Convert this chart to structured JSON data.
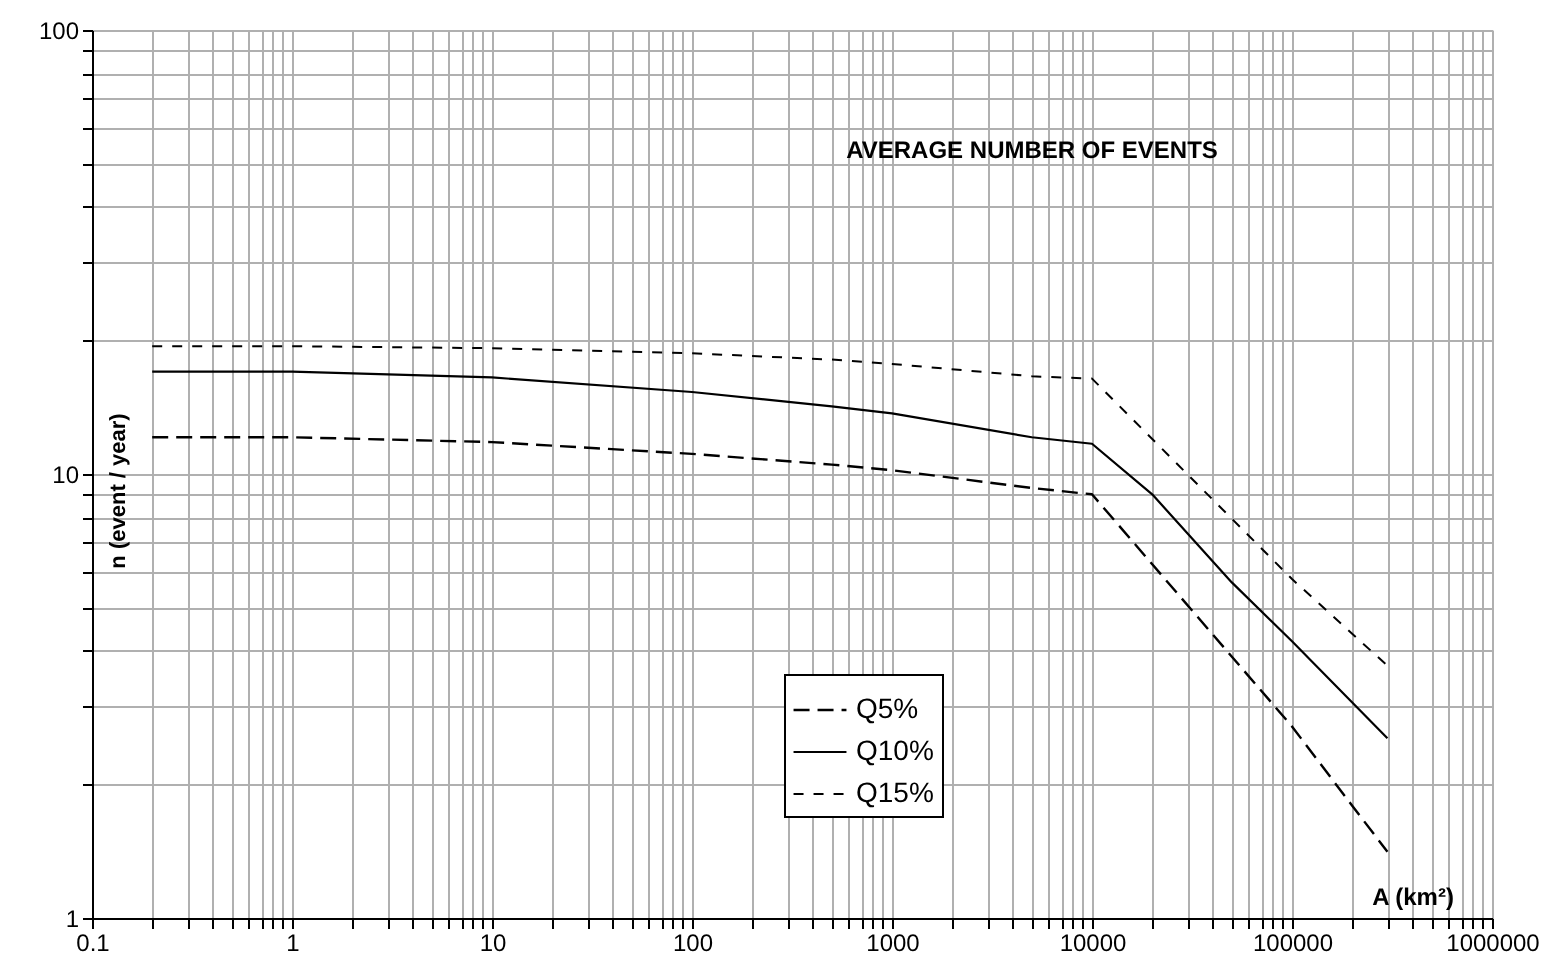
{
  "chart_data": {
    "type": "line",
    "title": "AVERAGE NUMBER OF EVENTS",
    "xlabel": "A (km²)",
    "ylabel": "n (event / year)",
    "log": "xy",
    "grid": true,
    "legend": "bottom",
    "marker": "none",
    "xlim": [
      0.1,
      1000000
    ],
    "ylim": [
      1,
      100
    ],
    "xticks": [
      0.1,
      {
        "value": 0.2,
        "label": null
      },
      {
        "value": 0.3,
        "label": null
      },
      {
        "value": 0.4,
        "label": null
      },
      {
        "value": 0.5,
        "label": null
      },
      {
        "value": 0.6,
        "label": null
      },
      {
        "value": 0.7,
        "label": null
      },
      {
        "value": 0.8,
        "label": null
      },
      {
        "value": 0.9,
        "label": null
      },
      1,
      {
        "value": 2,
        "label": null
      },
      {
        "value": 3,
        "label": null
      },
      {
        "value": 4,
        "label": null
      },
      {
        "value": 5,
        "label": null
      },
      {
        "value": 6,
        "label": null
      },
      {
        "value": 7,
        "label": null
      },
      {
        "value": 8,
        "label": null
      },
      {
        "value": 9,
        "label": null
      },
      10,
      {
        "value": 20,
        "label": null
      },
      {
        "value": 30,
        "label": null
      },
      {
        "value": 40,
        "label": null
      },
      {
        "value": 50,
        "label": null
      },
      {
        "value": 60,
        "label": null
      },
      {
        "value": 70,
        "label": null
      },
      {
        "value": 80,
        "label": null
      },
      {
        "value": 90,
        "label": null
      },
      100,
      {
        "value": 200,
        "label": null
      },
      {
        "value": 300,
        "label": null
      },
      {
        "value": 400,
        "label": null
      },
      {
        "value": 500,
        "label": null
      },
      {
        "value": 600,
        "label": null
      },
      {
        "value": 700,
        "label": null
      },
      {
        "value": 800,
        "label": null
      },
      {
        "value": 900,
        "label": null
      },
      1000,
      {
        "value": 2000,
        "label": null
      },
      {
        "value": 3000,
        "label": null
      },
      {
        "value": 4000,
        "label": null
      },
      {
        "value": 5000,
        "label": null
      },
      {
        "value": 6000,
        "label": null
      },
      {
        "value": 7000,
        "label": null
      },
      {
        "value": 8000,
        "label": null
      },
      {
        "value": 9000,
        "label": null
      },
      10000,
      {
        "value": 20000,
        "label": null
      },
      {
        "value": 30000,
        "label": null
      },
      {
        "value": 40000,
        "label": null
      },
      {
        "value": 50000,
        "label": null
      },
      {
        "value": 60000,
        "label": null
      },
      {
        "value": 70000,
        "label": null
      },
      {
        "value": 80000,
        "label": null
      },
      {
        "value": 90000,
        "label": null
      },
      100000,
      {
        "value": 200000,
        "label": null
      },
      {
        "value": 300000,
        "label": null
      },
      {
        "value": 400000,
        "label": null
      },
      {
        "value": 500000,
        "label": null
      },
      {
        "value": 600000,
        "label": null
      },
      {
        "value": 700000,
        "label": null
      },
      {
        "value": 800000,
        "label": null
      },
      {
        "value": 900000,
        "label": null
      },
      1000000
    ],
    "yticks": [
      1,
      {
        "value": 2,
        "label": null
      },
      {
        "value": 3,
        "label": null
      },
      {
        "value": 4,
        "label": null
      },
      {
        "value": 5,
        "label": null
      },
      {
        "value": 6,
        "label": null
      },
      {
        "value": 7,
        "label": null
      },
      {
        "value": 8,
        "label": null
      },
      {
        "value": 9,
        "label": null
      },
      10,
      {
        "value": 20,
        "label": null
      },
      {
        "value": 30,
        "label": null
      },
      {
        "value": 40,
        "label": null
      },
      {
        "value": 50,
        "label": null
      },
      {
        "value": 60,
        "label": null
      },
      {
        "value": 70,
        "label": null
      },
      {
        "value": 80,
        "label": null
      },
      {
        "value": 90,
        "label": null
      },
      100
    ],
    "series": [
      {
        "name": "Q5%",
        "color": "#000000",
        "line_style": "dashed",
        "x": [
          0.2,
          1,
          10,
          100,
          500,
          1000,
          5000,
          10000,
          100000,
          200000,
          300000
        ],
        "values": [
          12.1,
          12.1,
          11.8,
          11.1,
          10.5,
          10.2,
          9.3,
          9.0,
          2.7,
          1.79,
          1.41
        ]
      },
      {
        "name": "Q10%",
        "color": "#000000",
        "line_style": "solid",
        "x": [
          0.2,
          1,
          10,
          100,
          500,
          1000,
          5000,
          10000,
          20000,
          50000,
          100000,
          300000
        ],
        "values": [
          17.0,
          17.0,
          16.5,
          15.3,
          14.2,
          13.7,
          12.1,
          11.7,
          9.0,
          5.7,
          4.2,
          2.54
        ]
      },
      {
        "name": "Q15%",
        "color": "#000000",
        "line_style": "dotted",
        "x": [
          0.2,
          1,
          10,
          100,
          500,
          1000,
          5000,
          10000,
          100000,
          300000
        ],
        "values": [
          19.4,
          19.4,
          19.2,
          18.7,
          18.1,
          17.7,
          16.6,
          16.4,
          5.8,
          3.7
        ]
      }
    ]
  }
}
